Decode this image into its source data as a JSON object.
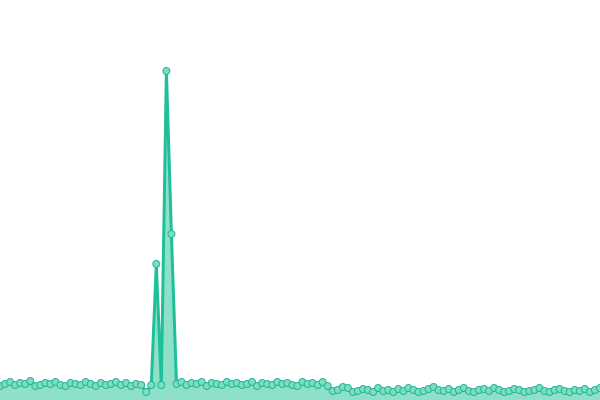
{
  "chart_data": {
    "type": "area",
    "title": "",
    "xlabel": "",
    "ylabel": "",
    "ylim": [
      0,
      400
    ],
    "grid": false,
    "legend": "none",
    "colors": {
      "line": "#1fbf9a",
      "fill": "#8ee0c9",
      "marker_fill": "#7fdcc3",
      "marker_stroke": "#1fb893"
    },
    "values": [
      14,
      16,
      18,
      15,
      17,
      16,
      19,
      14,
      15,
      17,
      16,
      18,
      15,
      14,
      17,
      16,
      15,
      18,
      16,
      14,
      17,
      15,
      16,
      18,
      15,
      17,
      14,
      16,
      15,
      8,
      15,
      136,
      15,
      329,
      166,
      16,
      18,
      15,
      17,
      16,
      18,
      14,
      17,
      16,
      15,
      18,
      16,
      17,
      15,
      16,
      18,
      14,
      17,
      16,
      15,
      18,
      16,
      17,
      15,
      14,
      18,
      16,
      17,
      15,
      18,
      14,
      9,
      10,
      13,
      12,
      8,
      9,
      11,
      10,
      8,
      12,
      9,
      10,
      8,
      11,
      9,
      12,
      10,
      8,
      9,
      11,
      13,
      10,
      9,
      11,
      8,
      10,
      12,
      9,
      8,
      10,
      11,
      9,
      12,
      10,
      8,
      9,
      11,
      10,
      8,
      9,
      10,
      12,
      9,
      8,
      10,
      11,
      9,
      8,
      10,
      9,
      11,
      8,
      10,
      12
    ]
  }
}
